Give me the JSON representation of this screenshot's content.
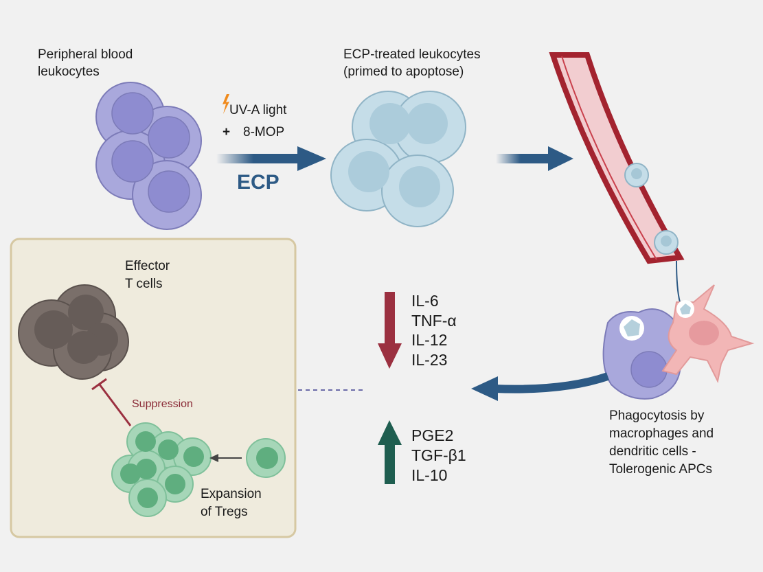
{
  "labels": {
    "peripheral": [
      "Peripheral blood",
      "leukocytes"
    ],
    "treated": [
      "ECP-treated leukocytes",
      "(primed to apoptose)"
    ],
    "uva": "UV-A light",
    "mop_plus": "+",
    "mop": "8-MOP",
    "ecp": "ECP",
    "effector": [
      "Effector",
      "T cells"
    ],
    "suppression": "Suppression",
    "tregs": [
      "Expansion",
      "of Tregs"
    ],
    "phago": [
      "Phagocytosis by",
      "macrophages and",
      "dendritic cells -",
      "Tolerogenic APCs"
    ]
  },
  "cytokines_down": [
    "IL-6",
    "TNF-α",
    "IL-12",
    "IL-23"
  ],
  "cytokines_up": [
    "PGE2",
    "TGF-β1",
    "IL-10"
  ],
  "colors": {
    "arrow_blue": "#2d5a85",
    "down_red": "#9b3040",
    "up_green": "#1f5e50",
    "leukocyte": "#a9a8dc",
    "treated": "#c5dde8",
    "effector": "#7a6f6a",
    "treg": "#7fc09a",
    "vessel": "#a3232f",
    "box_fill": "#efebdd"
  }
}
